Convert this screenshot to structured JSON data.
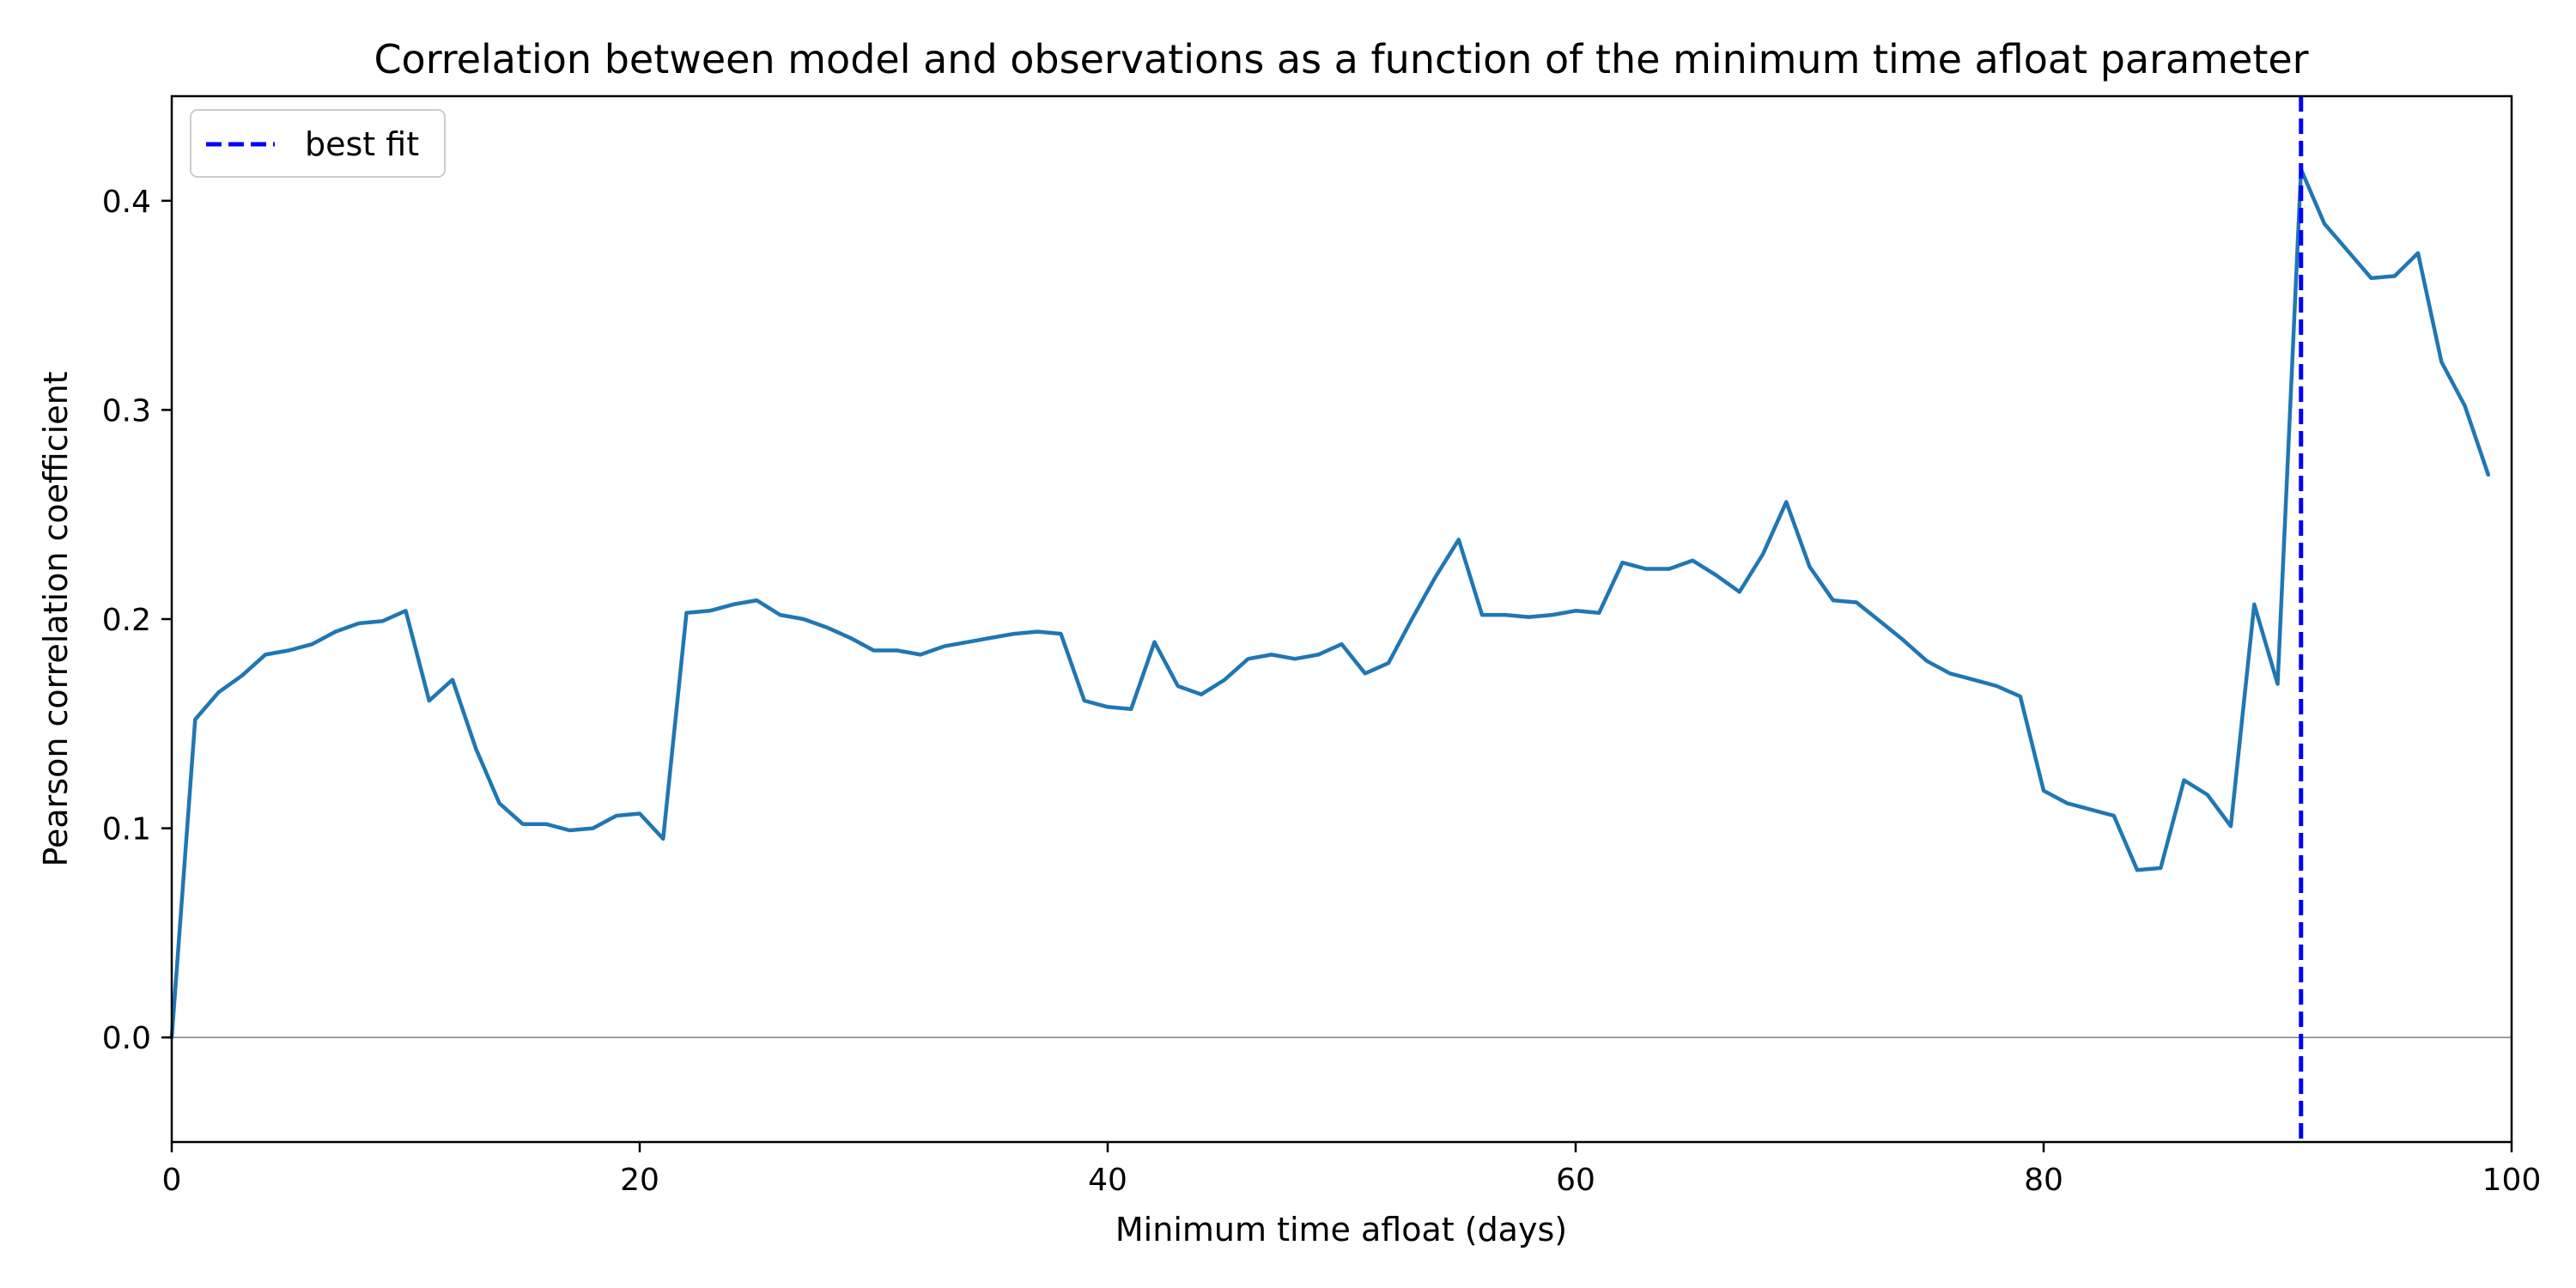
{
  "chart_data": {
    "type": "line",
    "title": "Correlation between model and observations as a function of the minimum time afloat parameter",
    "xlabel": "Minimum time afloat (days)",
    "ylabel": "Pearson correlation coefficient",
    "xlim": [
      0,
      100
    ],
    "ylim": [
      -0.05,
      0.45
    ],
    "x_ticks": [
      0,
      20,
      40,
      60,
      80,
      100
    ],
    "y_ticks": [
      0.0,
      0.1,
      0.2,
      0.3,
      0.4
    ],
    "x_tick_labels": [
      "0",
      "20",
      "40",
      "60",
      "80",
      "100"
    ],
    "y_tick_labels": [
      "0.0",
      "0.1",
      "0.2",
      "0.3",
      "0.4"
    ],
    "grid": false,
    "zero_line": true,
    "legend": {
      "placement": "upper-left",
      "entries": [
        {
          "label": "best fit",
          "style": "dashed",
          "color": "#0000ff"
        }
      ]
    },
    "best_fit_x": 91,
    "series": [
      {
        "color": "#1f77b4",
        "x": [
          0,
          1,
          2,
          3,
          4,
          5,
          6,
          7,
          8,
          9,
          10,
          11,
          12,
          13,
          14,
          15,
          16,
          17,
          18,
          19,
          20,
          21,
          22,
          23,
          24,
          25,
          26,
          27,
          28,
          29,
          30,
          31,
          32,
          33,
          34,
          35,
          36,
          37,
          38,
          39,
          40,
          41,
          42,
          43,
          44,
          45,
          46,
          47,
          48,
          49,
          50,
          51,
          52,
          53,
          54,
          55,
          56,
          57,
          58,
          59,
          60,
          61,
          62,
          63,
          64,
          65,
          66,
          67,
          68,
          69,
          70,
          71,
          72,
          73,
          74,
          75,
          76,
          77,
          78,
          79,
          80,
          81,
          82,
          83,
          84,
          85,
          86,
          87,
          88,
          89,
          90,
          91,
          92,
          93,
          94,
          95,
          96,
          97,
          98,
          99
        ],
        "values": [
          0.0,
          0.152,
          0.165,
          0.173,
          0.183,
          0.185,
          0.188,
          0.194,
          0.198,
          0.199,
          0.204,
          0.161,
          0.171,
          0.138,
          0.112,
          0.102,
          0.102,
          0.099,
          0.1,
          0.106,
          0.107,
          0.095,
          0.203,
          0.204,
          0.207,
          0.209,
          0.202,
          0.2,
          0.196,
          0.191,
          0.185,
          0.185,
          0.183,
          0.187,
          0.189,
          0.191,
          0.193,
          0.194,
          0.193,
          0.161,
          0.158,
          0.157,
          0.189,
          0.168,
          0.164,
          0.171,
          0.181,
          0.183,
          0.181,
          0.183,
          0.188,
          0.174,
          0.179,
          0.2,
          0.22,
          0.238,
          0.202,
          0.202,
          0.201,
          0.202,
          0.204,
          0.203,
          0.227,
          0.224,
          0.224,
          0.228,
          0.221,
          0.213,
          0.231,
          0.256,
          0.225,
          0.209,
          0.208,
          0.199,
          0.19,
          0.18,
          0.174,
          0.171,
          0.168,
          0.163,
          0.118,
          0.112,
          0.109,
          0.106,
          0.08,
          0.081,
          0.123,
          0.116,
          0.101,
          0.207,
          0.169,
          0.415,
          0.389,
          0.376,
          0.363,
          0.364,
          0.375,
          0.323,
          0.302,
          0.269
        ]
      }
    ]
  }
}
